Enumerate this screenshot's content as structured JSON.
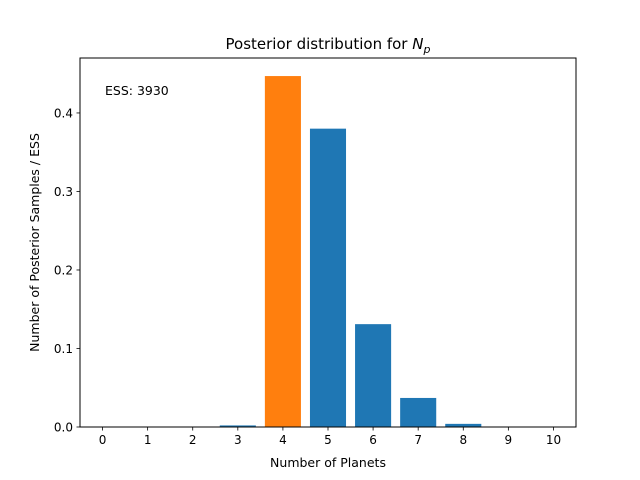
{
  "chart_data": {
    "type": "bar",
    "title": "Posterior distribution for",
    "title_symbol": "N",
    "title_subscript": "p",
    "xlabel": "Number of Planets",
    "ylabel": "Number of Posterior Samples / ESS",
    "categories": [
      0,
      1,
      2,
      3,
      4,
      5,
      6,
      7,
      8,
      9,
      10
    ],
    "values": [
      0.0,
      0.0,
      0.0,
      0.002,
      0.447,
      0.38,
      0.131,
      0.037,
      0.004,
      0.0,
      0.0
    ],
    "highlight_index": 4,
    "xlim": [
      -0.5,
      10.5
    ],
    "ylim": [
      0,
      0.47
    ],
    "yticks": [
      0.0,
      0.1,
      0.2,
      0.3,
      0.4
    ],
    "grid": false,
    "annotation": "ESS: 3930",
    "colors": {
      "bar": "#1f77b4",
      "highlight": "#ff7f0e"
    }
  }
}
